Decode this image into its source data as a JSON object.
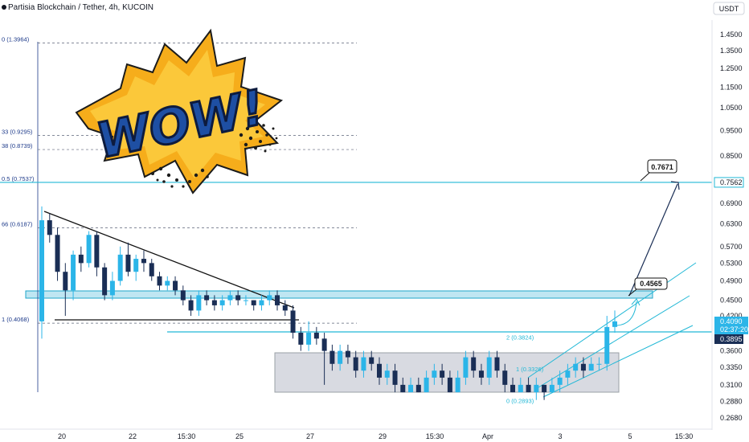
{
  "header": {
    "title": "Partisia Blockchain / Tether, 4h, KUCOIN",
    "currency_button": "USDT"
  },
  "chart_data": {
    "type": "candlestick",
    "symbol": "Partisia Blockchain / Tether",
    "interval": "4h",
    "exchange": "KUCOIN",
    "yaxis": {
      "scale": "log",
      "ticks": [
        "1.4500",
        "1.3500",
        "1.2500",
        "1.1500",
        "1.0500",
        "0.9500",
        "0.8500",
        "0.7562",
        "0.6900",
        "0.6300",
        "0.5700",
        "0.5300",
        "0.4900",
        "0.4500",
        "0.4200",
        "0.4090",
        "02:37:20",
        "0.3895",
        "0.3600",
        "0.3350",
        "0.3100",
        "0.2880",
        "0.2680"
      ],
      "range": [
        0.255,
        1.55
      ]
    },
    "xaxis": {
      "ticks": [
        "20",
        "22",
        "15:30",
        "25",
        "27",
        "29",
        "15:30",
        "Apr",
        "3",
        "5",
        "15:30"
      ]
    },
    "price_badges": [
      {
        "label": "0.7562",
        "style": "outline",
        "color": "#22b8d6"
      },
      {
        "label": "0.4090",
        "style": "filled",
        "color": "#2bb5e8"
      },
      {
        "label": "02:37:20",
        "style": "filled",
        "color": "#2bb5e8"
      },
      {
        "label": "0.3895",
        "style": "filled-dark",
        "color": "#1a2e55"
      }
    ],
    "fib_levels": [
      {
        "label": "0 (1.3964)",
        "value": 1.3964,
        "style": "dashed"
      },
      {
        "label": "33 (0.9295)",
        "value": 0.9295,
        "style": "dashed"
      },
      {
        "label": "38 (0.8739)",
        "value": 0.8739,
        "style": "dashed"
      },
      {
        "label": "0.5 (0.7537)",
        "value": 0.7537,
        "style": "solid-cyan"
      },
      {
        "label": "66 (0.6187)",
        "value": 0.6187,
        "style": "dashed"
      },
      {
        "label": "1 (0.4068)",
        "value": 0.4068,
        "style": "dashed"
      }
    ],
    "fib_levels_right": [
      {
        "label": "2 (0.3824)",
        "value": 0.3824
      },
      {
        "label": "1 (0.3326)",
        "value": 0.3326
      },
      {
        "label": "0 (0.2893)",
        "value": 0.2893
      }
    ],
    "annotations": [
      {
        "text": "0.7671",
        "kind": "callout"
      },
      {
        "text": "0.4565",
        "kind": "callout"
      }
    ],
    "sticker_text": "WOW!",
    "candles": [
      [
        0.41,
        0.64,
        0.68,
        0.38
      ],
      [
        0.64,
        0.6,
        0.66,
        0.58
      ],
      [
        0.6,
        0.51,
        0.62,
        0.49
      ],
      [
        0.51,
        0.47,
        0.53,
        0.42
      ],
      [
        0.47,
        0.55,
        0.56,
        0.45
      ],
      [
        0.55,
        0.53,
        0.57,
        0.51
      ],
      [
        0.53,
        0.6,
        0.61,
        0.52
      ],
      [
        0.6,
        0.52,
        0.61,
        0.5
      ],
      [
        0.52,
        0.46,
        0.53,
        0.45
      ],
      [
        0.46,
        0.49,
        0.51,
        0.45
      ],
      [
        0.49,
        0.55,
        0.57,
        0.48
      ],
      [
        0.55,
        0.51,
        0.58,
        0.5
      ],
      [
        0.51,
        0.54,
        0.55,
        0.49
      ],
      [
        0.54,
        0.53,
        0.56,
        0.51
      ],
      [
        0.53,
        0.5,
        0.54,
        0.49
      ],
      [
        0.5,
        0.48,
        0.51,
        0.47
      ],
      [
        0.48,
        0.49,
        0.5,
        0.47
      ],
      [
        0.49,
        0.47,
        0.5,
        0.46
      ],
      [
        0.47,
        0.45,
        0.48,
        0.44
      ],
      [
        0.45,
        0.43,
        0.46,
        0.42
      ],
      [
        0.43,
        0.46,
        0.47,
        0.42
      ],
      [
        0.46,
        0.45,
        0.47,
        0.44
      ],
      [
        0.45,
        0.44,
        0.46,
        0.43
      ],
      [
        0.44,
        0.45,
        0.46,
        0.43
      ],
      [
        0.45,
        0.46,
        0.47,
        0.44
      ],
      [
        0.46,
        0.45,
        0.47,
        0.44
      ],
      [
        0.45,
        0.45,
        0.46,
        0.44
      ],
      [
        0.45,
        0.44,
        0.45,
        0.43
      ],
      [
        0.44,
        0.45,
        0.46,
        0.43
      ],
      [
        0.45,
        0.46,
        0.47,
        0.44
      ],
      [
        0.46,
        0.44,
        0.47,
        0.43
      ],
      [
        0.44,
        0.43,
        0.45,
        0.42
      ],
      [
        0.43,
        0.39,
        0.44,
        0.38
      ],
      [
        0.39,
        0.37,
        0.4,
        0.36
      ],
      [
        0.37,
        0.39,
        0.41,
        0.36
      ],
      [
        0.39,
        0.38,
        0.4,
        0.37
      ],
      [
        0.38,
        0.36,
        0.39,
        0.31
      ],
      [
        0.36,
        0.34,
        0.37,
        0.33
      ],
      [
        0.34,
        0.36,
        0.37,
        0.33
      ],
      [
        0.36,
        0.35,
        0.37,
        0.34
      ],
      [
        0.35,
        0.33,
        0.36,
        0.32
      ],
      [
        0.33,
        0.35,
        0.36,
        0.32
      ],
      [
        0.35,
        0.34,
        0.36,
        0.33
      ],
      [
        0.34,
        0.32,
        0.35,
        0.31
      ],
      [
        0.32,
        0.33,
        0.34,
        0.31
      ],
      [
        0.33,
        0.31,
        0.34,
        0.3
      ],
      [
        0.31,
        0.3,
        0.32,
        0.3
      ],
      [
        0.3,
        0.31,
        0.32,
        0.3
      ],
      [
        0.31,
        0.3,
        0.32,
        0.3
      ],
      [
        0.3,
        0.32,
        0.33,
        0.3
      ],
      [
        0.32,
        0.33,
        0.34,
        0.31
      ],
      [
        0.33,
        0.32,
        0.34,
        0.31
      ],
      [
        0.32,
        0.3,
        0.33,
        0.3
      ],
      [
        0.3,
        0.32,
        0.33,
        0.3
      ],
      [
        0.32,
        0.35,
        0.36,
        0.31
      ],
      [
        0.35,
        0.33,
        0.36,
        0.32
      ],
      [
        0.33,
        0.32,
        0.34,
        0.31
      ],
      [
        0.32,
        0.35,
        0.36,
        0.31
      ],
      [
        0.35,
        0.33,
        0.36,
        0.32
      ],
      [
        0.33,
        0.31,
        0.34,
        0.3
      ],
      [
        0.31,
        0.3,
        0.32,
        0.3
      ],
      [
        0.3,
        0.31,
        0.32,
        0.3
      ],
      [
        0.31,
        0.3,
        0.32,
        0.3
      ],
      [
        0.3,
        0.31,
        0.32,
        0.29
      ],
      [
        0.31,
        0.3,
        0.31,
        0.29
      ],
      [
        0.3,
        0.31,
        0.32,
        0.3
      ],
      [
        0.31,
        0.32,
        0.33,
        0.3
      ],
      [
        0.32,
        0.33,
        0.34,
        0.31
      ],
      [
        0.33,
        0.34,
        0.35,
        0.32
      ],
      [
        0.34,
        0.33,
        0.35,
        0.32
      ],
      [
        0.33,
        0.34,
        0.35,
        0.33
      ],
      [
        0.34,
        0.34,
        0.35,
        0.33
      ],
      [
        0.34,
        0.4,
        0.42,
        0.33
      ],
      [
        0.4,
        0.41,
        0.43,
        0.39
      ]
    ]
  }
}
